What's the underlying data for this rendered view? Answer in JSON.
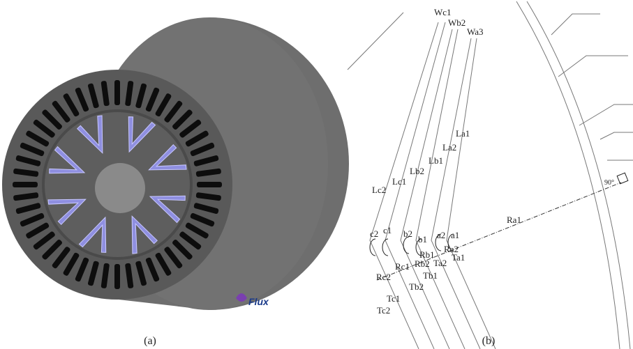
{
  "panel_a": {
    "caption": "(a)",
    "logo": "Flux"
  },
  "panel_b": {
    "caption": "(b)",
    "labels": [
      "Wc1",
      "Wb2",
      "Wa3",
      "La1",
      "La2",
      "Lb1",
      "Lb2",
      "Lc1",
      "Lc2",
      "c2",
      "c1",
      "b2",
      "b1",
      "a2",
      "a1",
      "Ra2",
      "Rb1",
      "Rb2",
      "Ta2",
      "Ta1",
      "Ra1",
      "Rc1",
      "Rc2",
      "Tb1",
      "Tb2",
      "Tc1",
      "Tc2",
      "90°"
    ]
  }
}
